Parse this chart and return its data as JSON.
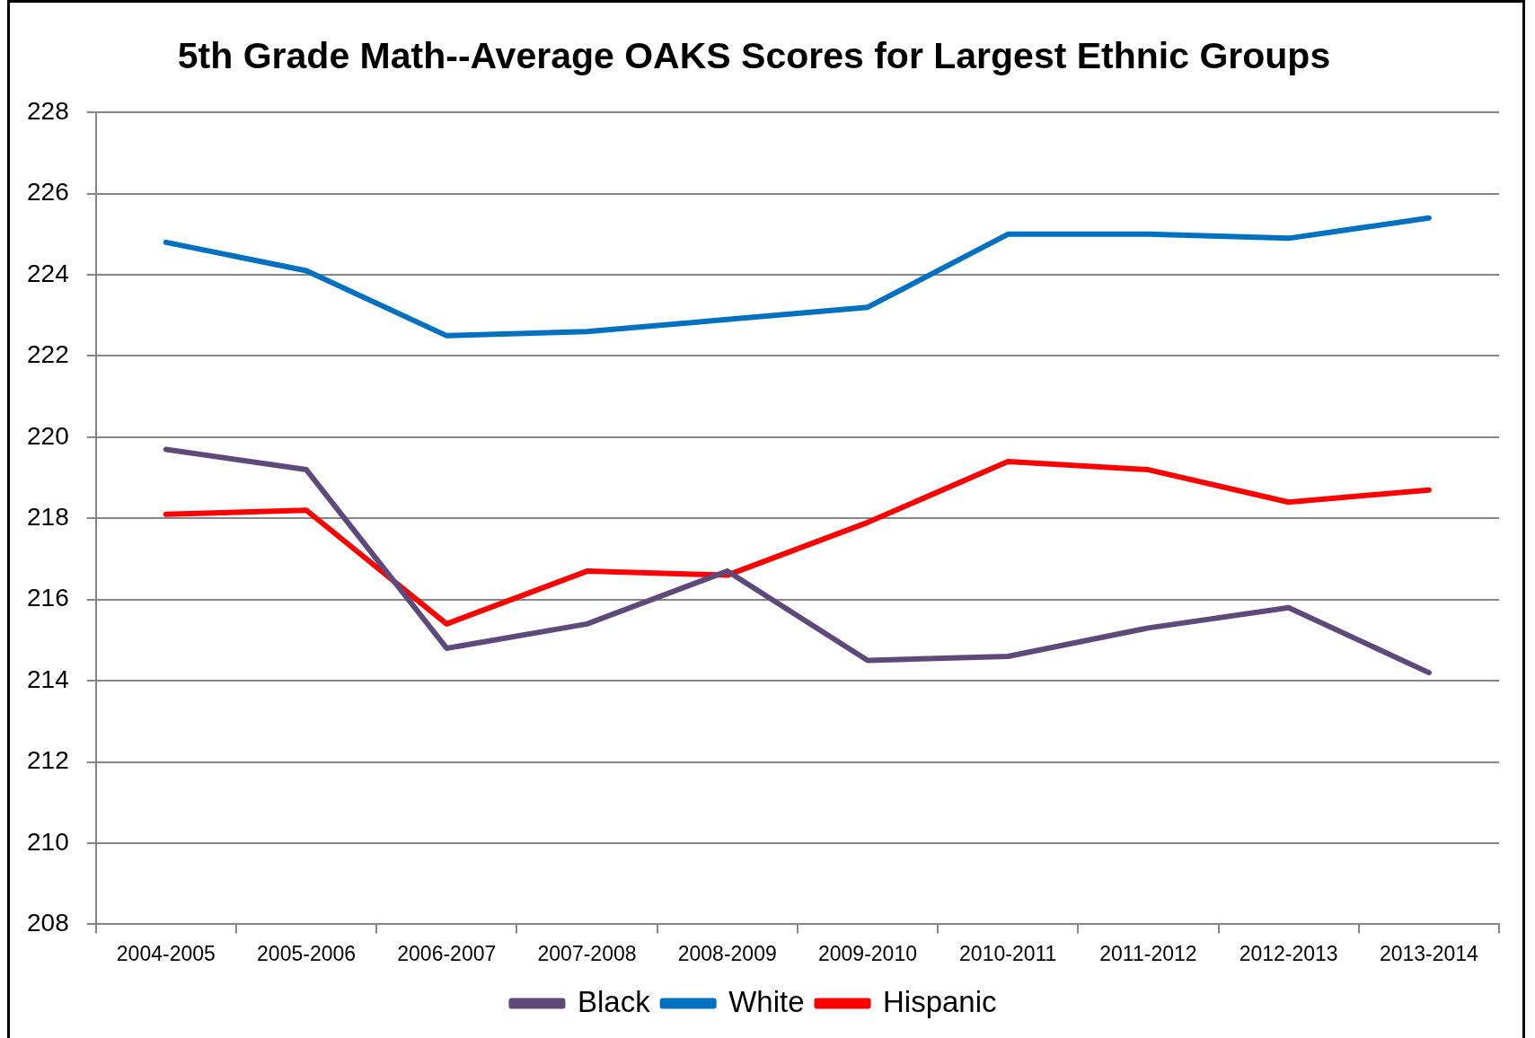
{
  "chart_data": {
    "type": "line",
    "title": "5th Grade Math--Average OAKS Scores for Largest Ethnic Groups",
    "categories": [
      "2004-2005",
      "2005-2006",
      "2006-2007",
      "2007-2008",
      "2008-2009",
      "2009-2010",
      "2010-2011",
      "2011-2012",
      "2012-2013",
      "2013-2014"
    ],
    "series": [
      {
        "name": "Black",
        "color": "#5f497a",
        "values": [
          219.7,
          219.2,
          214.8,
          215.4,
          216.7,
          214.5,
          214.6,
          215.3,
          215.8,
          214.2
        ]
      },
      {
        "name": "White",
        "color": "#0070c0",
        "values": [
          224.8,
          224.1,
          222.5,
          222.6,
          222.9,
          223.2,
          225.0,
          225.0,
          224.9,
          225.4
        ]
      },
      {
        "name": "Hispanic",
        "color": "#ff0000",
        "values": [
          218.1,
          218.2,
          215.4,
          216.7,
          216.6,
          217.9,
          219.4,
          219.2,
          218.4,
          218.7
        ]
      }
    ],
    "ylim": [
      208,
      228
    ],
    "yticks": [
      208,
      210,
      212,
      214,
      216,
      218,
      220,
      222,
      224,
      226,
      228
    ],
    "grid": "y",
    "legend": "bottom",
    "marker": "none"
  }
}
